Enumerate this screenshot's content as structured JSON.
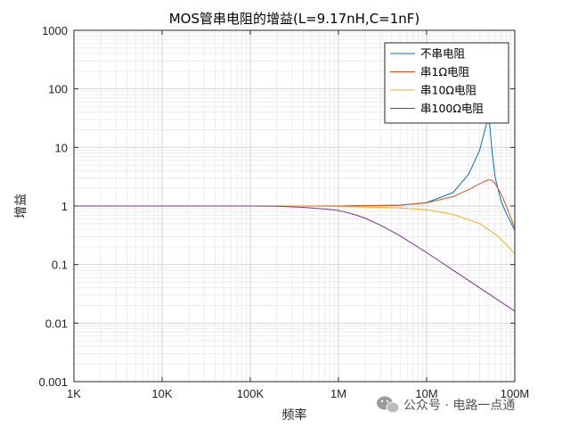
{
  "chart_data": {
    "type": "line",
    "title": "MOS管串电阻的增益(L=9.17nH,C=1nF)",
    "xlabel": "频率",
    "ylabel": "增益",
    "x_scale": "log",
    "y_scale": "log",
    "xlim": [
      1000,
      100000000
    ],
    "ylim": [
      0.001,
      1000
    ],
    "grid": true,
    "legend_position": "top-right",
    "x_ticks": [
      {
        "value": 1000,
        "label": "1K"
      },
      {
        "value": 10000,
        "label": "10K"
      },
      {
        "value": 100000,
        "label": "100K"
      },
      {
        "value": 1000000,
        "label": "1M"
      },
      {
        "value": 10000000,
        "label": "10M"
      },
      {
        "value": 100000000,
        "label": "100M"
      }
    ],
    "y_ticks": [
      {
        "value": 0.001,
        "label": "0.001"
      },
      {
        "value": 0.01,
        "label": "0.01"
      },
      {
        "value": 0.1,
        "label": "0.1"
      },
      {
        "value": 1,
        "label": "1"
      },
      {
        "value": 10,
        "label": "10"
      },
      {
        "value": 100,
        "label": "100"
      },
      {
        "value": 1000,
        "label": "1000"
      }
    ],
    "series": [
      {
        "name": "不串电阻",
        "color": "#0072BD",
        "points": [
          [
            1000,
            1
          ],
          [
            100000,
            1
          ],
          [
            1000000,
            1.0
          ],
          [
            5000000,
            1.03
          ],
          [
            10000000,
            1.14
          ],
          [
            20000000,
            1.7
          ],
          [
            30000000,
            3.5
          ],
          [
            40000000,
            9.0
          ],
          [
            45000000,
            18
          ],
          [
            48000000,
            26
          ],
          [
            50000000,
            30
          ],
          [
            52000000,
            24
          ],
          [
            55000000,
            9
          ],
          [
            60000000,
            3.0
          ],
          [
            70000000,
            1.2
          ],
          [
            80000000,
            0.75
          ],
          [
            100000000,
            0.38
          ]
        ]
      },
      {
        "name": "串1Ω电阻",
        "color": "#D95319",
        "points": [
          [
            1000,
            1
          ],
          [
            100000,
            1
          ],
          [
            1000000,
            1.0
          ],
          [
            5000000,
            1.03
          ],
          [
            10000000,
            1.13
          ],
          [
            20000000,
            1.45
          ],
          [
            30000000,
            1.9
          ],
          [
            40000000,
            2.4
          ],
          [
            50000000,
            2.8
          ],
          [
            55000000,
            2.75
          ],
          [
            60000000,
            2.4
          ],
          [
            70000000,
            1.6
          ],
          [
            80000000,
            1.0
          ],
          [
            100000000,
            0.42
          ]
        ]
      },
      {
        "name": "串10Ω电阻",
        "color": "#EDB120",
        "points": [
          [
            1000,
            1
          ],
          [
            100000,
            1
          ],
          [
            300000,
            0.995
          ],
          [
            1000000,
            0.98
          ],
          [
            3000000,
            0.95
          ],
          [
            5000000,
            0.93
          ],
          [
            10000000,
            0.86
          ],
          [
            20000000,
            0.72
          ],
          [
            40000000,
            0.5
          ],
          [
            60000000,
            0.33
          ],
          [
            80000000,
            0.22
          ],
          [
            100000000,
            0.15
          ]
        ]
      },
      {
        "name": "串100Ω电阻",
        "color": "#7E2F8E",
        "points": [
          [
            1000,
            1
          ],
          [
            100000,
            1
          ],
          [
            200000,
            0.99
          ],
          [
            400000,
            0.95
          ],
          [
            700000,
            0.89
          ],
          [
            1000000,
            0.84
          ],
          [
            1500000,
            0.72
          ],
          [
            2000000,
            0.62
          ],
          [
            3000000,
            0.47
          ],
          [
            5000000,
            0.31
          ],
          [
            10000000,
            0.16
          ],
          [
            20000000,
            0.08
          ],
          [
            50000000,
            0.032
          ],
          [
            100000000,
            0.016
          ]
        ]
      }
    ]
  },
  "watermark": {
    "text": "公众号 · 电路一点通"
  }
}
